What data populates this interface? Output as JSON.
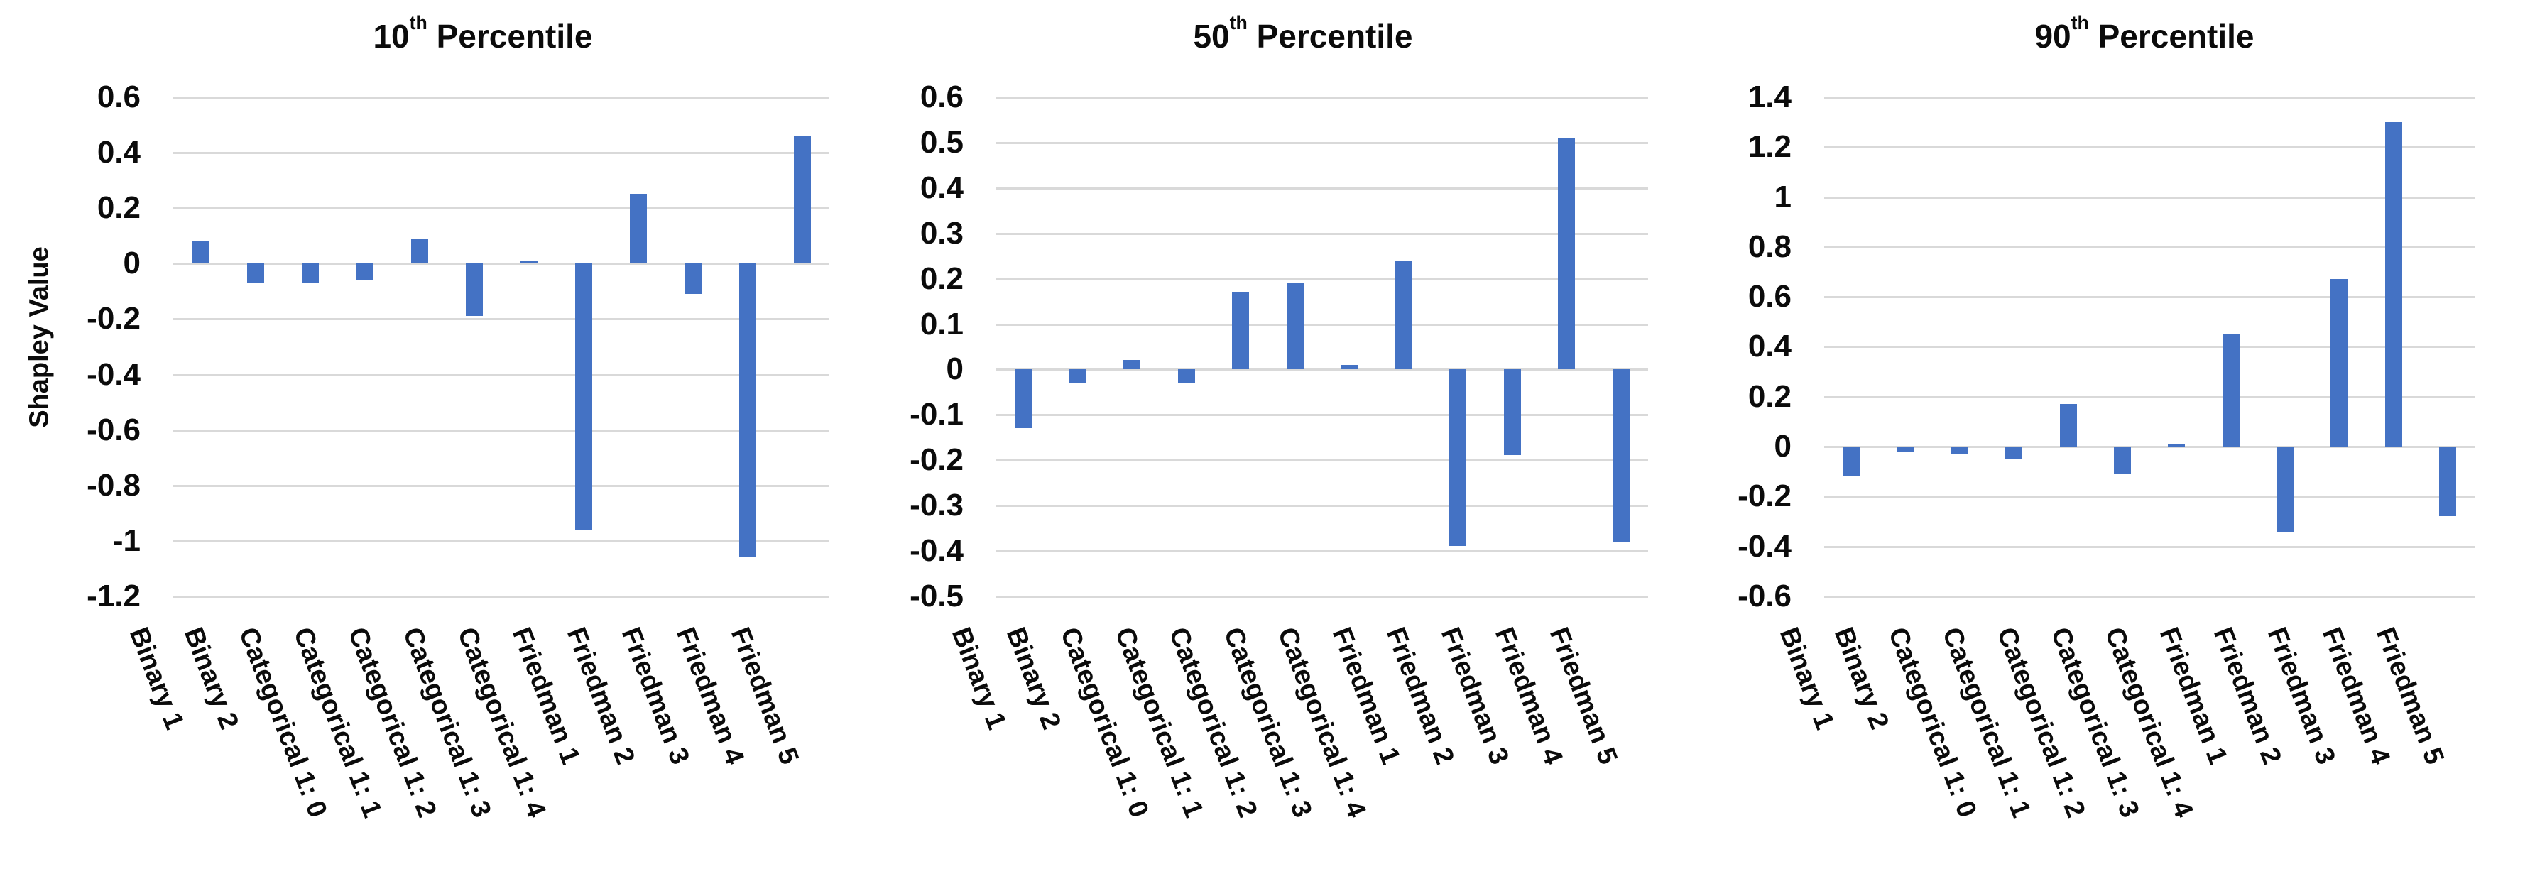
{
  "figure": {
    "ylabel": "Shapley Value",
    "bar_color": "#4472C4",
    "gridline_color": "#D9D9D9",
    "text_color": "#0b0b0b",
    "background_color": "#FFFFFF"
  },
  "categories": [
    "Binary 1",
    "Binary 2",
    "Categorical 1: 0",
    "Categorical 1: 1",
    "Categorical 1: 2",
    "Categorical 1: 3",
    "Categorical 1: 4",
    "Friedman 1",
    "Friedman 2",
    "Friedman 3",
    "Friedman 4",
    "Friedman 5"
  ],
  "chart_data": [
    {
      "type": "bar",
      "title": "10th Percentile",
      "title_num": "10",
      "title_sup": "th",
      "title_rest": " Percentile",
      "ylabel": "Shapley Value",
      "xlabel": "",
      "ylim": [
        -1.2,
        0.6
      ],
      "ytick_step": 0.2,
      "yticks": [
        0.6,
        0.4,
        0.2,
        0,
        -0.2,
        -0.4,
        -0.6,
        -0.8,
        -1,
        -1.2
      ],
      "grid": true,
      "legend": "none",
      "categories": [
        "Binary 1",
        "Binary 2",
        "Categorical 1: 0",
        "Categorical 1: 1",
        "Categorical 1: 2",
        "Categorical 1: 3",
        "Categorical 1: 4",
        "Friedman 1",
        "Friedman 2",
        "Friedman 3",
        "Friedman 4",
        "Friedman 5"
      ],
      "values": [
        0.08,
        -0.07,
        -0.07,
        -0.06,
        0.09,
        -0.19,
        0.01,
        -0.96,
        0.25,
        -0.11,
        -1.06,
        0.46
      ]
    },
    {
      "type": "bar",
      "title": "50th Percentile",
      "title_num": "50",
      "title_sup": "th",
      "title_rest": " Percentile",
      "ylabel": "",
      "xlabel": "",
      "ylim": [
        -0.5,
        0.6
      ],
      "ytick_step": 0.1,
      "yticks": [
        0.6,
        0.5,
        0.4,
        0.3,
        0.2,
        0.1,
        0,
        -0.1,
        -0.2,
        -0.3,
        -0.4,
        -0.5
      ],
      "grid": true,
      "legend": "none",
      "categories": [
        "Binary 1",
        "Binary 2",
        "Categorical 1: 0",
        "Categorical 1: 1",
        "Categorical 1: 2",
        "Categorical 1: 3",
        "Categorical 1: 4",
        "Friedman 1",
        "Friedman 2",
        "Friedman 3",
        "Friedman 4",
        "Friedman 5"
      ],
      "values": [
        -0.13,
        -0.03,
        0.02,
        -0.03,
        0.17,
        0.19,
        0.01,
        0.24,
        -0.39,
        -0.19,
        0.51,
        -0.38
      ]
    },
    {
      "type": "bar",
      "title": "90th Percentile",
      "title_num": "90",
      "title_sup": "th",
      "title_rest": " Percentile",
      "ylabel": "",
      "xlabel": "",
      "ylim": [
        -0.6,
        1.4
      ],
      "ytick_step": 0.2,
      "yticks": [
        1.4,
        1.2,
        1,
        0.8,
        0.6,
        0.4,
        0.2,
        0,
        -0.2,
        -0.4,
        -0.6
      ],
      "grid": true,
      "legend": "none",
      "categories": [
        "Binary 1",
        "Binary 2",
        "Categorical 1: 0",
        "Categorical 1: 1",
        "Categorical 1: 2",
        "Categorical 1: 3",
        "Categorical 1: 4",
        "Friedman 1",
        "Friedman 2",
        "Friedman 3",
        "Friedman 4",
        "Friedman 5"
      ],
      "values": [
        -0.12,
        -0.02,
        -0.03,
        -0.05,
        0.17,
        -0.11,
        0.01,
        0.45,
        -0.34,
        0.67,
        1.3,
        -0.28
      ]
    }
  ]
}
